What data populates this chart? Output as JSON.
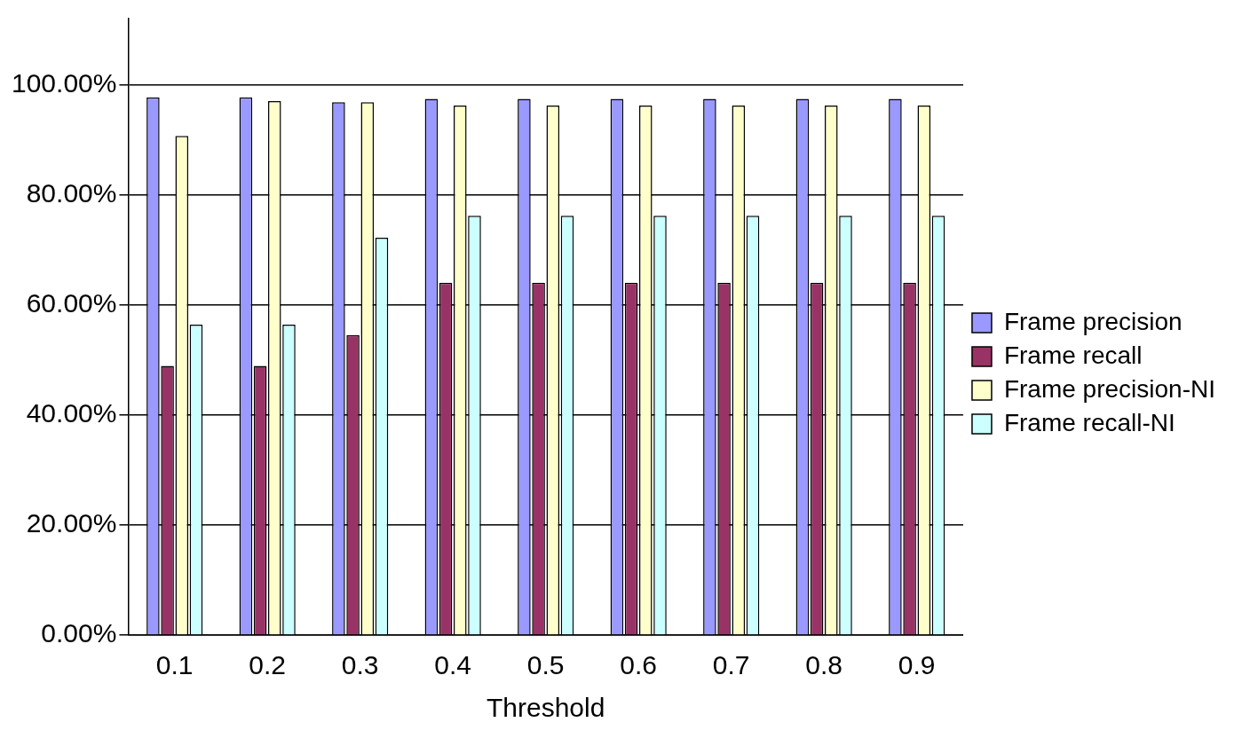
{
  "chart_data": {
    "type": "bar",
    "xlabel": "Threshold",
    "categories": [
      "0.1",
      "0.2",
      "0.3",
      "0.4",
      "0.5",
      "0.6",
      "0.7",
      "0.8",
      "0.9"
    ],
    "series": [
      {
        "name": "Frame precision",
        "color": "#9999ff",
        "values": [
          97.7,
          97.7,
          96.8,
          97.4,
          97.4,
          97.4,
          97.4,
          97.4,
          97.4
        ]
      },
      {
        "name": "Frame recall",
        "color": "#993366",
        "values": [
          48.9,
          48.9,
          54.5,
          64.0,
          64.0,
          64.0,
          64.0,
          64.0,
          64.0
        ]
      },
      {
        "name": "Frame precision-NI",
        "color": "#ffffcc",
        "values": [
          90.7,
          97.0,
          96.8,
          96.2,
          96.2,
          96.2,
          96.2,
          96.2,
          96.2
        ]
      },
      {
        "name": "Frame recall-NI",
        "color": "#ccffff",
        "values": [
          56.4,
          56.4,
          72.2,
          76.2,
          76.2,
          76.2,
          76.2,
          76.2,
          76.2
        ]
      }
    ],
    "ylim": [
      0,
      112
    ],
    "yticks": [
      {
        "value": 0,
        "label": "0.00%"
      },
      {
        "value": 20,
        "label": "20.00%"
      },
      {
        "value": 40,
        "label": "40.00%"
      },
      {
        "value": 60,
        "label": "60.00%"
      },
      {
        "value": 80,
        "label": "80.00%"
      },
      {
        "value": 100,
        "label": "100.00%"
      }
    ],
    "grid": "y",
    "legend": "right"
  }
}
